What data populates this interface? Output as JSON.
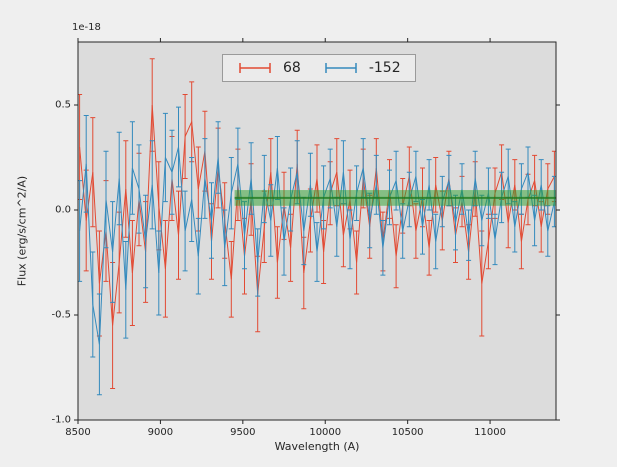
{
  "figure": {
    "bg": "#efefef",
    "axes_bg": "#dcdcdc",
    "offset_label": "1e-18"
  },
  "chart_data": {
    "type": "line",
    "error_bars": true,
    "title": "",
    "xlabel": "Wavelength (A)",
    "ylabel": "Flux (erg/s/cm^2/A)",
    "y_offset_factor": "1e-18",
    "xlim": [
      8500,
      11400
    ],
    "ylim": [
      -1.0,
      0.8
    ],
    "x_ticks": [
      8500,
      9000,
      9500,
      10000,
      10500,
      11000
    ],
    "x_tick_labels": [
      "8500",
      "9000",
      "9500",
      "10000",
      "10500",
      "11000"
    ],
    "y_ticks": [
      -1.0,
      -0.5,
      0.0,
      0.5
    ],
    "y_tick_labels": [
      "-1.0",
      "-0.5",
      "0.0",
      "0.5"
    ],
    "legend_position": "upper center",
    "grid": false,
    "x": [
      8510,
      8550,
      8590,
      8630,
      8670,
      8710,
      8750,
      8790,
      8830,
      8870,
      8910,
      8950,
      8990,
      9030,
      9070,
      9110,
      9150,
      9190,
      9230,
      9270,
      9310,
      9350,
      9390,
      9430,
      9470,
      9510,
      9550,
      9590,
      9630,
      9670,
      9710,
      9750,
      9790,
      9830,
      9870,
      9910,
      9950,
      9990,
      10030,
      10070,
      10110,
      10150,
      10190,
      10230,
      10270,
      10310,
      10350,
      10390,
      10430,
      10470,
      10510,
      10550,
      10590,
      10630,
      10670,
      10710,
      10750,
      10790,
      10830,
      10870,
      10910,
      10950,
      10990,
      11030,
      11070,
      11110,
      11150,
      11190,
      11230,
      11270,
      11310,
      11350,
      11390
    ],
    "series": [
      {
        "name": "68",
        "color": "#e24a33",
        "values": [
          0.3,
          -0.05,
          0.18,
          -0.35,
          -0.1,
          -0.55,
          -0.25,
          0.1,
          -0.3,
          0.05,
          -0.2,
          0.5,
          0.02,
          -0.28,
          0.15,
          -0.12,
          0.35,
          0.42,
          0.1,
          0.28,
          -0.15,
          0.2,
          -0.05,
          -0.33,
          0.12,
          -0.22,
          0.05,
          -0.4,
          -0.08,
          0.18,
          -0.25,
          0.02,
          -0.18,
          0.22,
          -0.3,
          -0.05,
          0.15,
          -0.2,
          0.08,
          0.18,
          -0.12,
          0.05,
          -0.25,
          0.15,
          -0.08,
          0.2,
          -0.15,
          0.1,
          -0.22,
          0.02,
          0.16,
          -0.1,
          0.06,
          -0.18,
          0.12,
          -0.05,
          0.15,
          -0.12,
          0.04,
          -0.2,
          0.1,
          -0.35,
          -0.15,
          0.08,
          0.18,
          -0.06,
          0.12,
          -0.15,
          0.05,
          0.14,
          -0.08,
          0.1,
          0.16
        ],
        "errors": [
          0.25,
          0.24,
          0.26,
          0.25,
          0.24,
          0.3,
          0.24,
          0.23,
          0.25,
          0.22,
          0.24,
          0.22,
          0.21,
          0.23,
          0.2,
          0.21,
          0.2,
          0.19,
          0.2,
          0.19,
          0.18,
          0.19,
          0.18,
          0.18,
          0.17,
          0.18,
          0.17,
          0.18,
          0.17,
          0.16,
          0.17,
          0.16,
          0.16,
          0.16,
          0.17,
          0.15,
          0.16,
          0.15,
          0.15,
          0.16,
          0.15,
          0.14,
          0.15,
          0.14,
          0.15,
          0.14,
          0.14,
          0.14,
          0.15,
          0.13,
          0.14,
          0.13,
          0.14,
          0.13,
          0.13,
          0.14,
          0.13,
          0.13,
          0.12,
          0.13,
          0.13,
          0.25,
          0.13,
          0.12,
          0.13,
          0.12,
          0.12,
          0.13,
          0.12,
          0.12,
          0.12,
          0.12,
          0.12
        ]
      },
      {
        "name": "-152",
        "color": "#348abd",
        "values": [
          -0.1,
          0.22,
          -0.45,
          -0.64,
          0.05,
          -0.2,
          0.15,
          -0.38,
          0.2,
          0.1,
          -0.15,
          0.12,
          -0.3,
          0.25,
          0.18,
          0.3,
          -0.1,
          0.05,
          -0.22,
          0.15,
          -0.05,
          0.25,
          -0.18,
          0.08,
          0.22,
          -0.12,
          0.15,
          -0.25,
          0.1,
          -0.05,
          0.2,
          -0.15,
          0.05,
          0.18,
          -0.1,
          0.12,
          -0.2,
          0.06,
          0.15,
          -0.08,
          0.18,
          -0.14,
          0.08,
          0.2,
          -0.05,
          0.12,
          -0.18,
          0.06,
          0.14,
          -0.1,
          0.05,
          0.16,
          -0.08,
          0.12,
          -0.15,
          0.04,
          0.14,
          -0.06,
          0.1,
          -0.12,
          0.15,
          -0.05,
          0.08,
          -0.14,
          0.06,
          0.16,
          -0.08,
          0.1,
          0.18,
          -0.05,
          0.12,
          -0.1,
          0.04
        ],
        "errors": [
          0.24,
          0.23,
          0.25,
          0.24,
          0.23,
          0.24,
          0.22,
          0.23,
          0.22,
          0.21,
          0.22,
          0.21,
          0.2,
          0.21,
          0.2,
          0.19,
          0.19,
          0.2,
          0.18,
          0.19,
          0.18,
          0.17,
          0.18,
          0.17,
          0.17,
          0.16,
          0.17,
          0.16,
          0.16,
          0.17,
          0.15,
          0.16,
          0.15,
          0.15,
          0.16,
          0.15,
          0.14,
          0.15,
          0.14,
          0.14,
          0.15,
          0.14,
          0.13,
          0.14,
          0.13,
          0.14,
          0.13,
          0.13,
          0.14,
          0.13,
          0.13,
          0.12,
          0.13,
          0.12,
          0.13,
          0.12,
          0.12,
          0.13,
          0.12,
          0.12,
          0.13,
          0.12,
          0.12,
          0.12,
          0.12,
          0.13,
          0.12,
          0.12,
          0.12,
          0.12,
          0.12,
          0.12,
          0.12
        ]
      }
    ],
    "band": {
      "x_start": 9450,
      "x_end": 11400,
      "y_low": 0.02,
      "y_high": 0.095,
      "y_center": 0.0575,
      "color": "#2ca02c",
      "line_color": "#1e7b1e",
      "alpha": 0.5
    }
  }
}
